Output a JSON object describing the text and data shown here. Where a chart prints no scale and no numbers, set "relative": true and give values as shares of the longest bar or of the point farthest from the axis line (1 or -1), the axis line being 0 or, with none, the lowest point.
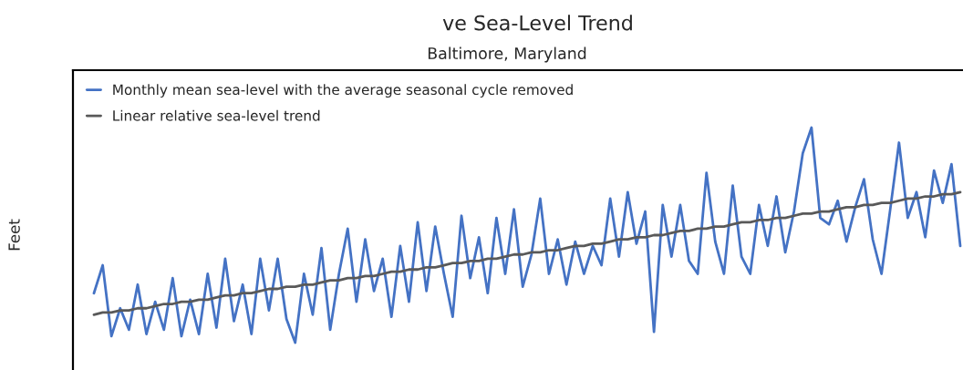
{
  "chart_data": {
    "type": "line",
    "title": "ve Sea-Level Trend",
    "subtitle": "Baltimore, Maryland",
    "ylabel": "Feet",
    "relative": true,
    "legend": "top left",
    "marker": "none",
    "line_style": "solid",
    "categories": [
      null,
      null,
      null,
      null,
      null,
      null,
      null,
      null,
      null,
      null,
      null,
      null,
      null,
      null,
      null,
      null,
      null,
      null,
      null,
      null,
      null,
      null,
      null,
      null,
      null,
      null,
      null,
      null,
      null,
      null,
      null,
      null,
      null,
      null,
      null,
      null,
      null,
      null,
      null,
      null,
      null,
      null,
      null,
      null,
      null,
      null,
      null,
      null,
      null,
      null,
      null,
      null,
      null,
      null,
      null,
      null,
      null,
      null,
      null,
      null,
      null,
      null,
      null,
      null,
      null,
      null,
      null,
      null,
      null,
      null,
      null,
      null,
      null,
      null,
      null,
      null,
      null,
      null,
      null,
      null,
      null,
      null,
      null,
      null,
      null,
      null,
      null,
      null,
      null,
      null,
      null,
      null,
      null,
      null,
      null,
      null,
      null,
      null,
      null,
      null
    ],
    "series": [
      {
        "name": "Monthly mean sea-level with the average seasonal cycle removed",
        "color": "#4472c4",
        "values": [
          0.23,
          0.36,
          0.03,
          0.16,
          0.06,
          0.27,
          0.04,
          0.19,
          0.06,
          0.3,
          0.03,
          0.2,
          0.04,
          0.32,
          0.07,
          0.39,
          0.1,
          0.27,
          0.04,
          0.39,
          0.15,
          0.39,
          0.11,
          0,
          0.32,
          0.13,
          0.44,
          0.06,
          0.32,
          0.53,
          0.19,
          0.48,
          0.24,
          0.39,
          0.12,
          0.45,
          0.19,
          0.56,
          0.24,
          0.54,
          0.32,
          0.12,
          0.59,
          0.3,
          0.49,
          0.23,
          0.58,
          0.32,
          0.62,
          0.26,
          0.41,
          0.67,
          0.32,
          0.48,
          0.27,
          0.47,
          0.32,
          0.45,
          0.36,
          0.67,
          0.4,
          0.7,
          0.46,
          0.61,
          0.05,
          0.64,
          0.4,
          0.64,
          0.38,
          0.32,
          0.79,
          0.47,
          0.32,
          0.73,
          0.4,
          0.32,
          0.64,
          0.45,
          0.68,
          0.42,
          0.61,
          0.88,
          1,
          0.58,
          0.55,
          0.66,
          0.47,
          0.63,
          0.76,
          0.48,
          0.32,
          0.62,
          0.93,
          0.58,
          0.7,
          0.49,
          0.8,
          0.65,
          0.83,
          0.45
        ]
      },
      {
        "name": "Linear relative sea-level trend",
        "color": "#595959",
        "values": [
          0.13,
          0.14,
          0.14,
          0.15,
          0.15,
          0.16,
          0.16,
          0.17,
          0.18,
          0.18,
          0.19,
          0.19,
          0.2,
          0.2,
          0.21,
          0.22,
          0.22,
          0.23,
          0.23,
          0.24,
          0.25,
          0.25,
          0.26,
          0.26,
          0.27,
          0.27,
          0.28,
          0.29,
          0.29,
          0.3,
          0.3,
          0.31,
          0.31,
          0.32,
          0.33,
          0.33,
          0.34,
          0.34,
          0.35,
          0.35,
          0.36,
          0.37,
          0.37,
          0.38,
          0.38,
          0.39,
          0.39,
          0.4,
          0.41,
          0.41,
          0.42,
          0.42,
          0.43,
          0.43,
          0.44,
          0.45,
          0.45,
          0.46,
          0.46,
          0.47,
          0.48,
          0.48,
          0.49,
          0.49,
          0.5,
          0.5,
          0.51,
          0.52,
          0.52,
          0.53,
          0.53,
          0.54,
          0.54,
          0.55,
          0.56,
          0.56,
          0.57,
          0.57,
          0.58,
          0.58,
          0.59,
          0.6,
          0.6,
          0.61,
          0.61,
          0.62,
          0.63,
          0.63,
          0.64,
          0.64,
          0.65,
          0.65,
          0.66,
          0.67,
          0.67,
          0.68,
          0.68,
          0.69,
          0.69,
          0.7
        ]
      }
    ]
  }
}
